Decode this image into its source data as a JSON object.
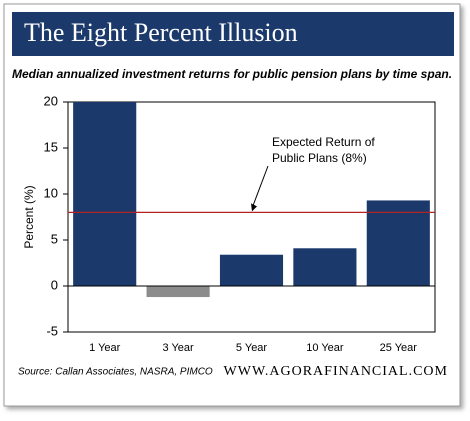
{
  "chart_data": {
    "type": "bar",
    "title": "The Eight Percent Illusion",
    "subtitle": "Median annualized investment returns for public pension plans by time span.",
    "y_label": "Percent (%)",
    "categories": [
      "1 Year",
      "3 Year",
      "5 Year",
      "10 Year",
      "25 Year"
    ],
    "values": [
      20,
      -1.2,
      3.4,
      4.1,
      9.3
    ],
    "colors": [
      "#1b3a6b",
      "#8c8c8c",
      "#1b3a6b",
      "#1b3a6b",
      "#1b3a6b"
    ],
    "ylim": [
      -5,
      20
    ],
    "yticks": [
      -5,
      0,
      5,
      10,
      15,
      20
    ],
    "reference_line": {
      "value": 8,
      "color": "#b22222",
      "lines": [
        "Expected Return of",
        "Public Plans (8%)"
      ]
    },
    "source": "Source: Callan Associates, NASRA, PIMCO",
    "website": "WWW.AGORAFINANCIAL.COM"
  }
}
